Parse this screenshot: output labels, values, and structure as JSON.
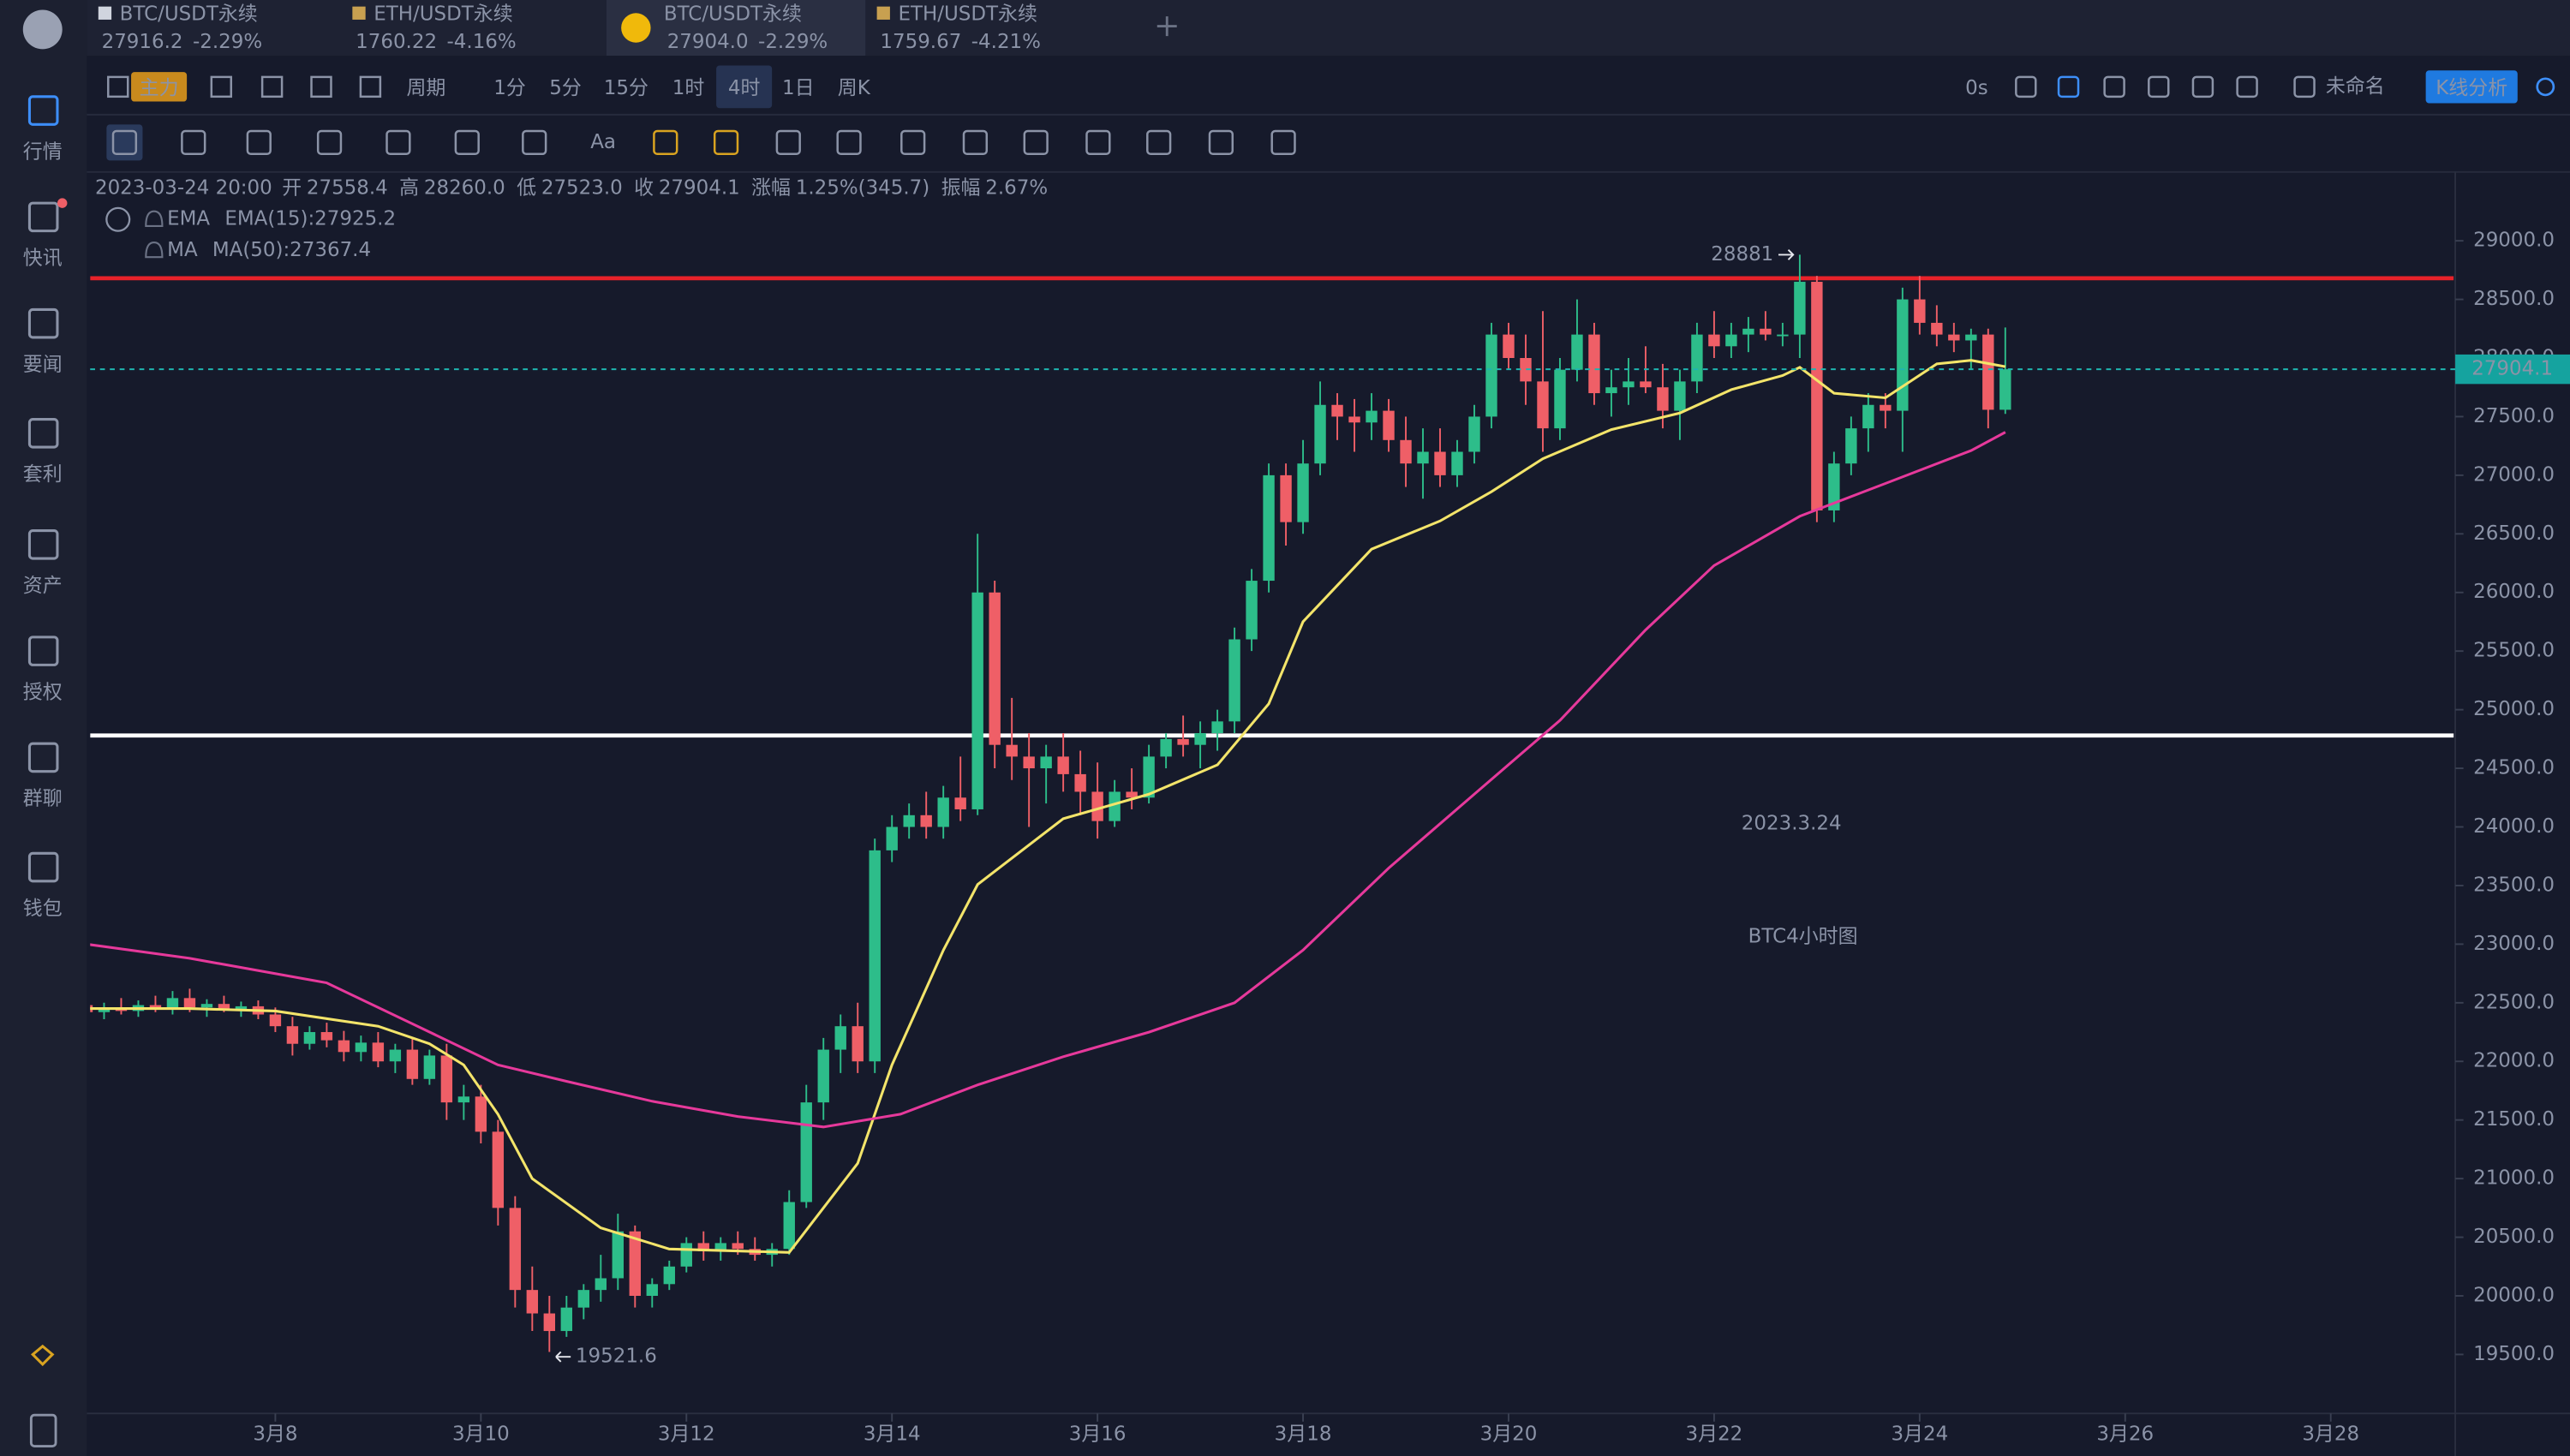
{
  "tabs": [
    {
      "name": "BTC/USDT永续",
      "price": "27916.2",
      "change": "-2.29%"
    },
    {
      "name": "ETH/USDT永续",
      "price": "1760.22",
      "change": "-4.16%"
    },
    {
      "name": "BTC/USDT永续",
      "price": "27904.0",
      "change": "-2.29%"
    },
    {
      "name": "ETH/USDT永续",
      "price": "1759.67",
      "change": "-4.21%"
    }
  ],
  "sidebar": [
    "行情",
    "快讯",
    "要闻",
    "套利",
    "资产",
    "授权",
    "群聊",
    "钱包"
  ],
  "toolbar": {
    "main": "主力",
    "period": "周期",
    "intervals": [
      "1分",
      "5分",
      "15分",
      "1时",
      "4时",
      "1日",
      "周K"
    ],
    "timer": "0s",
    "layout": "未命名",
    "analysis": "K线分析",
    "font_tool": "Aa"
  },
  "info": {
    "time": "2023-03-24 20:00",
    "fields": [
      {
        "label": "开",
        "value": "27558.4"
      },
      {
        "label": "高",
        "value": "28260.0"
      },
      {
        "label": "低",
        "value": "27523.0"
      },
      {
        "label": "收",
        "value": "27904.1"
      },
      {
        "label": "涨幅",
        "value": "1.25%(345.7)"
      },
      {
        "label": "振幅",
        "value": "2.67%"
      }
    ]
  },
  "chart_data": {
    "type": "candlestick",
    "up_color": "#2dbd8a",
    "down_color": "#ef5f67",
    "x": [
      4,
      8,
      12,
      16,
      20,
      24,
      28,
      32,
      36,
      40,
      44,
      48,
      52,
      56,
      60,
      64,
      68,
      72,
      76,
      80,
      84,
      88,
      92,
      96,
      100,
      104,
      108,
      112,
      116,
      120,
      124,
      128,
      132,
      136,
      140,
      144,
      148,
      152,
      156,
      160,
      164,
      168,
      172,
      176,
      180,
      184,
      188,
      192,
      196,
      200,
      204,
      208,
      212,
      216,
      220,
      224,
      228,
      232,
      236,
      240,
      244,
      248,
      252,
      256,
      260,
      264,
      268,
      272,
      276,
      280,
      284,
      288,
      292,
      296,
      300,
      304,
      308,
      312,
      316,
      320,
      324,
      328,
      332,
      336,
      340,
      344,
      348,
      352,
      356,
      360,
      364,
      368,
      372,
      376,
      380,
      384,
      388,
      392,
      396,
      400,
      404,
      408,
      412,
      416,
      420,
      424,
      428,
      432,
      436,
      440,
      444,
      448,
      452
    ],
    "open": [
      22480,
      22420,
      22460,
      22430,
      22480,
      22450,
      22540,
      22460,
      22490,
      22440,
      22470,
      22400,
      22300,
      22150,
      22250,
      22180,
      22080,
      22160,
      22000,
      22100,
      21850,
      22050,
      21650,
      21700,
      21400,
      20750,
      20050,
      19850,
      19700,
      19900,
      20050,
      20150,
      20550,
      20000,
      20100,
      20250,
      20450,
      20380,
      20450,
      20400,
      20350,
      20400,
      20800,
      21650,
      22100,
      22300,
      22000,
      23800,
      24000,
      24100,
      24000,
      24250,
      24150,
      26000,
      24700,
      24600,
      24500,
      24600,
      24450,
      24300,
      24050,
      24300,
      24250,
      24600,
      24750,
      24700,
      24800,
      24900,
      25600,
      26100,
      27000,
      26600,
      27100,
      27600,
      27500,
      27450,
      27550,
      27300,
      27100,
      27200,
      27000,
      27200,
      27500,
      28200,
      28000,
      27800,
      27400,
      27900,
      28200,
      27700,
      27750,
      27800,
      27750,
      27550,
      27800,
      28200,
      28100,
      28200,
      28250,
      28200,
      28200,
      28650,
      26700,
      27100,
      27400,
      27600,
      27550,
      28500,
      28300,
      28200,
      28150,
      28200,
      27558.4
    ],
    "high": [
      22560,
      22500,
      22540,
      22520,
      22560,
      22600,
      22620,
      22530,
      22560,
      22510,
      22520,
      22460,
      22380,
      22300,
      22330,
      22260,
      22220,
      22250,
      22150,
      22200,
      22100,
      22150,
      21800,
      21800,
      21500,
      20850,
      20250,
      20000,
      20000,
      20100,
      20350,
      20700,
      20600,
      20150,
      20300,
      20500,
      20550,
      20500,
      20550,
      20500,
      20450,
      20900,
      21800,
      22200,
      22400,
      22500,
      23900,
      24100,
      24200,
      24300,
      24350,
      24600,
      26500,
      26100,
      25100,
      24800,
      24700,
      24800,
      24650,
      24550,
      24400,
      24500,
      24700,
      24800,
      24950,
      24900,
      25000,
      25700,
      26200,
      27100,
      27100,
      27300,
      27800,
      27700,
      27650,
      27700,
      27650,
      27500,
      27400,
      27400,
      27300,
      27600,
      28300,
      28300,
      28200,
      28400,
      28000,
      28500,
      28300,
      27900,
      28000,
      28100,
      27950,
      27900,
      28300,
      28400,
      28300,
      28350,
      28400,
      28300,
      28881,
      28700,
      27200,
      27500,
      27700,
      27700,
      28600,
      28700,
      28450,
      28300,
      28250,
      28250,
      28260
    ],
    "low": [
      22380,
      22360,
      22400,
      22380,
      22420,
      22400,
      22420,
      22380,
      22420,
      22380,
      22360,
      22250,
      22050,
      22100,
      22120,
      22000,
      22000,
      21950,
      21900,
      21800,
      21800,
      21500,
      21500,
      21300,
      20600,
      19900,
      19700,
      19521.6,
      19650,
      19800,
      19950,
      20050,
      19900,
      19900,
      20050,
      20200,
      20300,
      20300,
      20350,
      20300,
      20250,
      20350,
      20750,
      21500,
      21900,
      21900,
      21900,
      23700,
      23900,
      23900,
      23900,
      24050,
      24100,
      24500,
      24400,
      24000,
      24200,
      24300,
      24100,
      23900,
      24000,
      24150,
      24200,
      24500,
      24600,
      24500,
      24650,
      24800,
      25500,
      26000,
      26400,
      26500,
      27000,
      27300,
      27200,
      27300,
      27200,
      26900,
      26800,
      26900,
      26900,
      27100,
      27400,
      27900,
      27600,
      27200,
      27300,
      27800,
      27600,
      27500,
      27600,
      27700,
      27400,
      27300,
      27700,
      28000,
      28000,
      28050,
      28150,
      28100,
      28000,
      26600,
      26600,
      27000,
      27200,
      27400,
      27200,
      28200,
      28100,
      28050,
      27900,
      27400,
      27523
    ],
    "close": [
      22420,
      22460,
      22430,
      22480,
      22450,
      22540,
      22460,
      22490,
      22440,
      22470,
      22400,
      22300,
      22150,
      22250,
      22180,
      22080,
      22160,
      22000,
      22100,
      21850,
      22050,
      21650,
      21700,
      21400,
      20750,
      20050,
      19850,
      19700,
      19900,
      20050,
      20150,
      20550,
      20000,
      20100,
      20250,
      20450,
      20380,
      20450,
      20400,
      20350,
      20400,
      20800,
      21650,
      22100,
      22300,
      22000,
      23800,
      24000,
      24100,
      24000,
      24250,
      24150,
      26000,
      24700,
      24600,
      24500,
      24600,
      24450,
      24300,
      24050,
      24300,
      24250,
      24600,
      24750,
      24700,
      24800,
      24900,
      25600,
      26100,
      27000,
      26600,
      27100,
      27600,
      27500,
      27450,
      27550,
      27300,
      27100,
      27200,
      27000,
      27200,
      27500,
      28200,
      28000,
      27800,
      27400,
      27900,
      28200,
      27700,
      27750,
      27800,
      27750,
      27550,
      27800,
      28200,
      28100,
      28200,
      28250,
      28200,
      28200,
      28650,
      26700,
      27100,
      27400,
      27600,
      27550,
      28500,
      28300,
      28200,
      28150,
      28200,
      27558.4,
      27904.1
    ],
    "series": [
      {
        "name": "EMA",
        "legend": "EMA(15):27925.2",
        "color": "#f3e46a",
        "x": [
          4,
          28,
          48,
          72,
          84,
          92,
          100,
          108,
          124,
          140,
          168,
          184,
          192,
          204,
          212,
          232,
          252,
          268,
          280,
          288,
          304,
          320,
          332,
          344,
          360,
          376,
          388,
          400,
          404,
          412,
          424,
          436,
          444,
          452
        ],
        "values": [
          22450,
          22450,
          22430,
          22300,
          22150,
          21970,
          21550,
          21000,
          20580,
          20400,
          20370,
          21130,
          21970,
          22950,
          23510,
          24070,
          24280,
          24530,
          25050,
          25750,
          26370,
          26610,
          26860,
          27140,
          27390,
          27530,
          27730,
          27850,
          27920,
          27700,
          27660,
          27950,
          27980,
          27925.2
        ]
      },
      {
        "name": "MA",
        "legend": "MA(50):27367.4",
        "color": "#e6399b",
        "x": [
          4,
          28,
          60,
          80,
          100,
          116,
          136,
          156,
          176,
          194,
          212,
          232,
          252,
          272,
          288,
          308,
          328,
          348,
          368,
          384,
          404,
          424,
          444,
          452
        ],
        "values": [
          23000,
          22880,
          22670,
          22320,
          21970,
          21830,
          21660,
          21530,
          21440,
          21550,
          21800,
          22040,
          22250,
          22500,
          22950,
          23650,
          24280,
          24910,
          25680,
          26230,
          26650,
          26930,
          27210,
          27367.4
        ]
      }
    ],
    "hlines": [
      {
        "value": 28680,
        "color": "#e8222a"
      },
      {
        "value": 24780,
        "color": "#ffffff"
      }
    ],
    "annotations": [
      {
        "text": "2023.3.24",
        "color": "#e8231f"
      },
      {
        "text": "BTC4小时图",
        "color": "#e8231f"
      }
    ],
    "xlim": [
      4.75,
      556.7
    ],
    "xticks": [
      {
        "value": 48,
        "label": "3月8"
      },
      {
        "value": 96,
        "label": "3月10"
      },
      {
        "value": 144,
        "label": "3月12"
      },
      {
        "value": 192,
        "label": "3月14"
      },
      {
        "value": 240,
        "label": "3月16"
      },
      {
        "value": 288,
        "label": "3月18"
      },
      {
        "value": 336,
        "label": "3月20"
      },
      {
        "value": 384,
        "label": "3月22"
      },
      {
        "value": 432,
        "label": "3月24"
      },
      {
        "value": 480,
        "label": "3月26"
      },
      {
        "value": 528,
        "label": "3月28"
      }
    ],
    "ylim": [
      19011,
      29545
    ],
    "yticks": [
      {
        "value": 19500,
        "label": "19500.0"
      },
      {
        "value": 20000,
        "label": "20000.0"
      },
      {
        "value": 20500,
        "label": "20500.0"
      },
      {
        "value": 21000,
        "label": "21000.0"
      },
      {
        "value": 21500,
        "label": "21500.0"
      },
      {
        "value": 22000,
        "label": "22000.0"
      },
      {
        "value": 22500,
        "label": "22500.0"
      },
      {
        "value": 23000,
        "label": "23000.0"
      },
      {
        "value": 23500,
        "label": "23500.0"
      },
      {
        "value": 24000,
        "label": "24000.0"
      },
      {
        "value": 24500,
        "label": "24500.0"
      },
      {
        "value": 25000,
        "label": "25000.0"
      },
      {
        "value": 25500,
        "label": "25500.0"
      },
      {
        "value": 26000,
        "label": "26000.0"
      },
      {
        "value": 26500,
        "label": "26500.0"
      },
      {
        "value": 27000,
        "label": "27000.0"
      },
      {
        "value": 27500,
        "label": "27500.0"
      },
      {
        "value": 28000,
        "label": "28000.0"
      },
      {
        "value": 28500,
        "label": "28500.0"
      },
      {
        "value": 29000,
        "label": "29000.0"
      }
    ],
    "grid": false
  }
}
